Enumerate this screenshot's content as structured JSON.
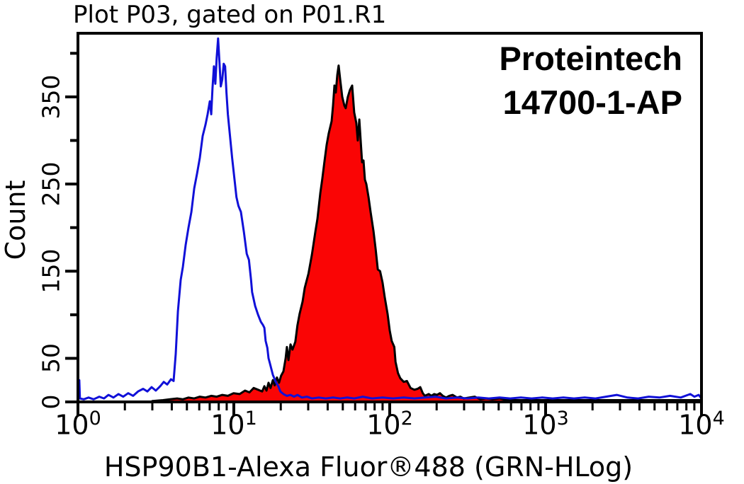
{
  "chart_data": {
    "type": "area",
    "title": "Plot P03, gated on P01.R1",
    "xlabel": "HSP90B1-Alexa Fluor®488 (GRN-HLog)",
    "ylabel": "Count",
    "x_scale": "log10",
    "xlim": [
      1,
      10000
    ],
    "ylim": [
      0,
      423
    ],
    "grid": false,
    "legend": "none",
    "x_major_tick_exponents": [
      0,
      1,
      2,
      3,
      4
    ],
    "x_minor_tick_multiples": [
      2,
      3,
      4,
      5,
      6,
      7,
      8,
      9
    ],
    "y_major_ticks_labeled": [
      0,
      50,
      150,
      250,
      350
    ],
    "y_minor_ticks": [
      100,
      200,
      300,
      400
    ],
    "annotation": {
      "line1": "Proteintech",
      "line2": "14700-1-AP"
    },
    "colors": {
      "blue_curve": "#1010d8",
      "red_fill": "#fa0505",
      "red_outline": "#000000",
      "axis": "#000000",
      "background": "#ffffff"
    },
    "series": [
      {
        "name": "red_filled_histogram",
        "style": "filled",
        "color": "#000000",
        "fill": "#fa0505",
        "points": [
          [
            3.0,
            1
          ],
          [
            3.51,
            2
          ],
          [
            3.9,
            3
          ],
          [
            4.33,
            4
          ],
          [
            4.71,
            3
          ],
          [
            5.12,
            5
          ],
          [
            5.57,
            4
          ],
          [
            6.05,
            6
          ],
          [
            6.58,
            5
          ],
          [
            7.16,
            7
          ],
          [
            7.76,
            6
          ],
          [
            8.43,
            8
          ],
          [
            9.16,
            7
          ],
          [
            9.96,
            10
          ],
          [
            10.9,
            9
          ],
          [
            11.8,
            13
          ],
          [
            12.6,
            11
          ],
          [
            13.4,
            16
          ],
          [
            14.3,
            14
          ],
          [
            15.2,
            12
          ],
          [
            15.7,
            18
          ],
          [
            16.2,
            13
          ],
          [
            16.7,
            22
          ],
          [
            17.2,
            16
          ],
          [
            17.8,
            25
          ],
          [
            18.3,
            19
          ],
          [
            18.9,
            28
          ],
          [
            19.5,
            22
          ],
          [
            20.1,
            30
          ],
          [
            20.8,
            35
          ],
          [
            21.5,
            50
          ],
          [
            21.9,
            63
          ],
          [
            22.4,
            48
          ],
          [
            23.1,
            66
          ],
          [
            23.8,
            60
          ],
          [
            24.8,
            69
          ],
          [
            25.6,
            88
          ],
          [
            26.4,
            101
          ],
          [
            27.6,
            115
          ],
          [
            28.5,
            131
          ],
          [
            30.1,
            147
          ],
          [
            31.7,
            169
          ],
          [
            33.4,
            196
          ],
          [
            34.4,
            210
          ],
          [
            35.9,
            240
          ],
          [
            36.9,
            255
          ],
          [
            38.2,
            277
          ],
          [
            39.4,
            295
          ],
          [
            40.6,
            308
          ],
          [
            42.4,
            322
          ],
          [
            43.3,
            340
          ],
          [
            44.2,
            363
          ],
          [
            45.1,
            355
          ],
          [
            46.1,
            375
          ],
          [
            47,
            386
          ],
          [
            48.1,
            370
          ],
          [
            49.6,
            350
          ],
          [
            51.2,
            340
          ],
          [
            52.2,
            337
          ],
          [
            53.9,
            350
          ],
          [
            55.6,
            358
          ],
          [
            57.4,
            363
          ],
          [
            59.2,
            332
          ],
          [
            61.1,
            320
          ],
          [
            62.4,
            300
          ],
          [
            63.8,
            324
          ],
          [
            65.1,
            300
          ],
          [
            66.5,
            275
          ],
          [
            67.9,
            277
          ],
          [
            69.3,
            255
          ],
          [
            70.8,
            250
          ],
          [
            73.1,
            235
          ],
          [
            75.4,
            218
          ],
          [
            78.7,
            196
          ],
          [
            81.3,
            175
          ],
          [
            83.9,
            152
          ],
          [
            86.7,
            150
          ],
          [
            90,
            137
          ],
          [
            92.9,
            120
          ],
          [
            96.9,
            101
          ],
          [
            100,
            82
          ],
          [
            103,
            70
          ],
          [
            107,
            63
          ],
          [
            109,
            46
          ],
          [
            113,
            33
          ],
          [
            117,
            27
          ],
          [
            123,
            23
          ],
          [
            129,
            24
          ],
          [
            136,
            16
          ],
          [
            144,
            14
          ],
          [
            151,
            15
          ],
          [
            157,
            17
          ],
          [
            163,
            10
          ],
          [
            168,
            7
          ],
          [
            178,
            9
          ],
          [
            185,
            7
          ],
          [
            193,
            9
          ],
          [
            201,
            8
          ],
          [
            210,
            10
          ],
          [
            219,
            7
          ],
          [
            230,
            5
          ],
          [
            241,
            7
          ],
          [
            253,
            8
          ],
          [
            270,
            5
          ],
          [
            284,
            6
          ],
          [
            298,
            4
          ],
          [
            323,
            5
          ],
          [
            351,
            6
          ],
          [
            381,
            3
          ],
          [
            413,
            4
          ],
          [
            456,
            3
          ],
          [
            507,
            4
          ],
          [
            563,
            2
          ],
          [
            661,
            2
          ],
          [
            813,
            2
          ],
          [
            1060,
            2
          ],
          [
            1370,
            2
          ],
          [
            1870,
            2
          ],
          [
            2560,
            2
          ],
          [
            3500,
            2
          ],
          [
            4790,
            2
          ],
          [
            6550,
            2
          ],
          [
            8580,
            2
          ],
          [
            10000,
            2
          ]
        ]
      },
      {
        "name": "blue_open_histogram",
        "style": "line",
        "color": "#1010d8",
        "fill": "none",
        "points": [
          [
            1.0,
            0
          ],
          [
            1.0,
            25
          ],
          [
            1.02,
            25
          ],
          [
            1.03,
            4
          ],
          [
            1.09,
            3
          ],
          [
            1.17,
            5
          ],
          [
            1.26,
            3
          ],
          [
            1.37,
            6
          ],
          [
            1.47,
            4
          ],
          [
            1.57,
            8
          ],
          [
            1.69,
            5
          ],
          [
            1.82,
            9
          ],
          [
            1.95,
            6
          ],
          [
            2.1,
            10
          ],
          [
            2.26,
            7
          ],
          [
            2.43,
            12
          ],
          [
            2.62,
            15
          ],
          [
            2.79,
            12
          ],
          [
            2.97,
            17
          ],
          [
            3.16,
            13
          ],
          [
            3.37,
            18
          ],
          [
            3.55,
            23
          ],
          [
            3.74,
            20
          ],
          [
            3.95,
            26
          ],
          [
            4.11,
            24
          ],
          [
            4.24,
            55
          ],
          [
            4.38,
            104
          ],
          [
            4.56,
            140
          ],
          [
            4.71,
            155
          ],
          [
            4.91,
            180
          ],
          [
            5.12,
            200
          ],
          [
            5.34,
            218
          ],
          [
            5.57,
            245
          ],
          [
            5.81,
            262
          ],
          [
            6.05,
            280
          ],
          [
            6.31,
            305
          ],
          [
            6.58,
            318
          ],
          [
            6.79,
            330
          ],
          [
            7.01,
            345
          ],
          [
            7.16,
            330
          ],
          [
            7.3,
            360
          ],
          [
            7.45,
            385
          ],
          [
            7.61,
            365
          ],
          [
            7.76,
            395
          ],
          [
            7.93,
            417
          ],
          [
            8.09,
            390
          ],
          [
            8.25,
            362
          ],
          [
            8.43,
            370
          ],
          [
            8.61,
            388
          ],
          [
            8.79,
            385
          ],
          [
            8.97,
            355
          ],
          [
            9.16,
            330
          ],
          [
            9.45,
            305
          ],
          [
            9.75,
            280
          ],
          [
            10.1,
            255
          ],
          [
            10.4,
            235
          ],
          [
            10.7,
            225
          ],
          [
            11.1,
            218
          ],
          [
            11.6,
            195
          ],
          [
            12.1,
            170
          ],
          [
            12.5,
            163
          ],
          [
            12.9,
            140
          ],
          [
            13.1,
            126
          ],
          [
            13.7,
            110
          ],
          [
            14.3,
            100
          ],
          [
            14.9,
            92
          ],
          [
            15.4,
            88
          ],
          [
            15.7,
            85
          ],
          [
            16,
            70
          ],
          [
            16.4,
            62
          ],
          [
            16.7,
            50
          ],
          [
            17,
            45
          ],
          [
            17.4,
            38
          ],
          [
            17.8,
            31
          ],
          [
            18.3,
            26
          ],
          [
            18.7,
            22
          ],
          [
            19.3,
            18
          ],
          [
            19.9,
            12
          ],
          [
            20.8,
            9
          ],
          [
            21.9,
            7
          ],
          [
            23.1,
            8
          ],
          [
            24.3,
            6
          ],
          [
            25.6,
            8
          ],
          [
            27.3,
            5
          ],
          [
            29.4,
            6
          ],
          [
            31.7,
            4
          ],
          [
            35.1,
            5
          ],
          [
            38.9,
            4
          ],
          [
            43.3,
            5
          ],
          [
            48.1,
            4
          ],
          [
            53.2,
            5
          ],
          [
            59.2,
            4
          ],
          [
            67.2,
            6
          ],
          [
            77.1,
            4
          ],
          [
            90,
            5
          ],
          [
            105,
            4
          ],
          [
            123,
            5
          ],
          [
            144,
            4
          ],
          [
            168,
            5
          ],
          [
            197,
            6
          ],
          [
            230,
            4
          ],
          [
            270,
            5
          ],
          [
            316,
            4
          ],
          [
            370,
            5
          ],
          [
            433,
            4
          ],
          [
            507,
            5
          ],
          [
            593,
            4
          ],
          [
            694,
            5
          ],
          [
            813,
            4
          ],
          [
            951,
            5
          ],
          [
            1110,
            4
          ],
          [
            1300,
            5
          ],
          [
            1520,
            4
          ],
          [
            1780,
            5
          ],
          [
            2090,
            4
          ],
          [
            2440,
            6
          ],
          [
            2860,
            8
          ],
          [
            3350,
            5
          ],
          [
            3920,
            4
          ],
          [
            4590,
            6
          ],
          [
            5370,
            5
          ],
          [
            6280,
            7
          ],
          [
            7360,
            5
          ],
          [
            8480,
            9
          ],
          [
            9010,
            6
          ],
          [
            9590,
            8
          ],
          [
            10000,
            4
          ]
        ]
      }
    ]
  }
}
